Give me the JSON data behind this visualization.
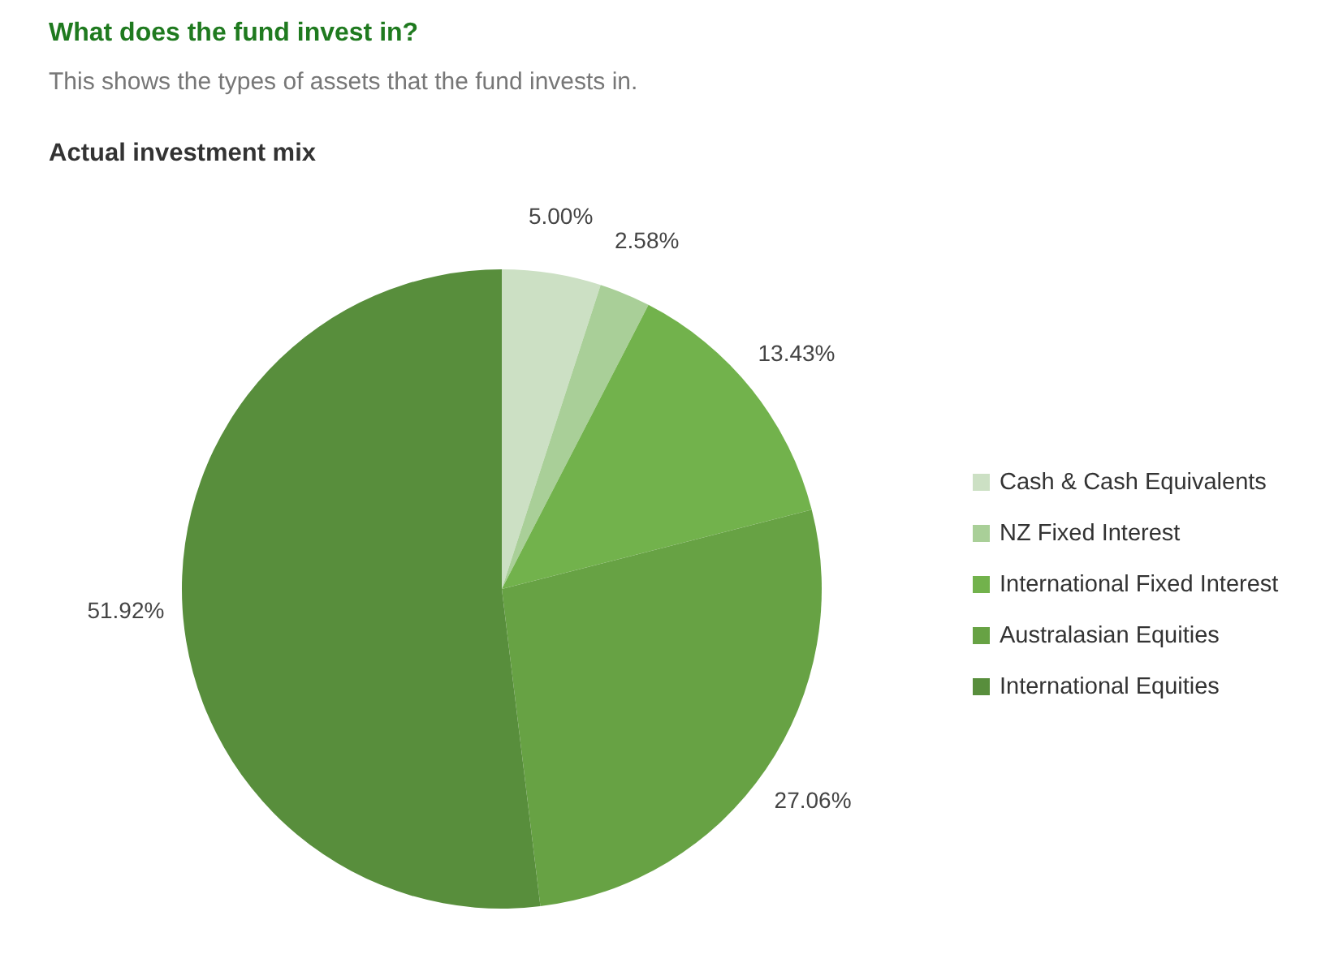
{
  "chart_data": {
    "type": "pie",
    "title": "What does the fund invest in?",
    "subtitle": "This shows the types of assets that the fund invests in.",
    "annotations": [
      "Actual investment mix"
    ],
    "categories": [
      "Cash & Cash Equivalents",
      "NZ Fixed Interest",
      "International Fixed Interest",
      "Australasian Equities",
      "International Equities"
    ],
    "values": [
      5.0,
      2.58,
      13.43,
      27.06,
      51.92
    ],
    "value_labels": [
      "5.00%",
      "2.58%",
      "13.43%",
      "27.06%",
      "51.92%"
    ],
    "colors": [
      "#cce0c4",
      "#a9cf98",
      "#72b24c",
      "#67a244",
      "#588e3c"
    ],
    "legend": "right"
  }
}
